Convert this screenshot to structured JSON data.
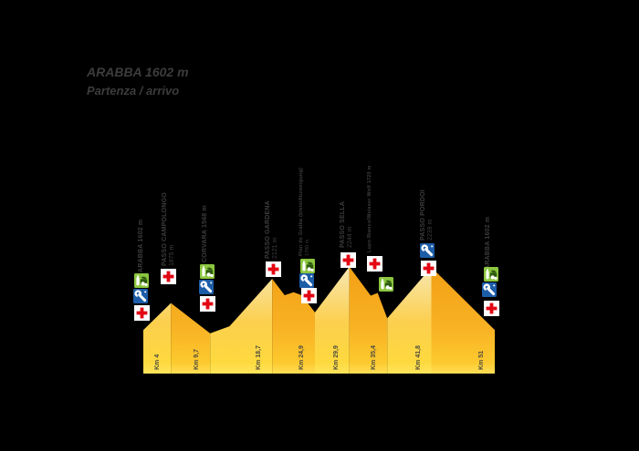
{
  "title": {
    "line1": "ARABBA 1602 m",
    "line2": "Partenza / arrivo"
  },
  "waypoints": [
    {
      "id": "arabba-start",
      "line1": "ARABBA 1602 m",
      "line2": "",
      "services": [
        "refreshment",
        "mechanic",
        "medical"
      ]
    },
    {
      "id": "passo-campolongo",
      "line1": "PASSO CAMPOLONGO",
      "line2": "1875 m",
      "services": [
        "medical"
      ]
    },
    {
      "id": "corvara",
      "line1": "CORVARA 1568 m",
      "line2": "",
      "services": [
        "refreshment",
        "mechanic",
        "medical"
      ]
    },
    {
      "id": "passo-gardena",
      "line1": "PASSO GARDENA",
      "line2": "2121 m",
      "services": [
        "medical"
      ]
    },
    {
      "id": "plan-de-gralba",
      "line1": "Plan de Gralba (bivio/Abzweigung)",
      "line2": "1780 m",
      "services": [
        "refreshment",
        "mechanic",
        "medical"
      ]
    },
    {
      "id": "passo-sella",
      "line1": "PASSO SELLA",
      "line2": "2244 m",
      "services": [
        "medical"
      ]
    },
    {
      "id": "lupo-bianco",
      "line1": "Lupo Bianco/Weisser Wolf 1720 m",
      "line2": "",
      "services": [
        "medical",
        "refreshment"
      ]
    },
    {
      "id": "passo-pordoi",
      "line1": "PASSO PORDOI",
      "line2": "2239 m",
      "services": [
        "mechanic",
        "medical"
      ]
    },
    {
      "id": "arabba-finish",
      "line1": "ARABBA 1602 m",
      "line2": "",
      "services": [
        "refreshment",
        "mechanic",
        "medical"
      ]
    }
  ],
  "chart_data": {
    "type": "area",
    "title": "ARABBA 1602 m — Partenza / arrivo",
    "xlabel": "Km",
    "ylabel": "m",
    "x_range_km": [
      0,
      51
    ],
    "points": [
      {
        "km": 0,
        "alt": 1602,
        "name": "Arabba"
      },
      {
        "km": 4,
        "alt": 1875,
        "name": "Passo Campolongo"
      },
      {
        "km": 9.7,
        "alt": 1568,
        "name": "Corvara"
      },
      {
        "km": 12.5,
        "alt": 1640,
        "minor": true
      },
      {
        "km": 18.7,
        "alt": 2121,
        "name": "Passo Gardena"
      },
      {
        "km": 20.5,
        "alt": 1955,
        "minor": true
      },
      {
        "km": 21.8,
        "alt": 1985,
        "minor": true
      },
      {
        "km": 23.0,
        "alt": 1955,
        "minor": true
      },
      {
        "km": 24.9,
        "alt": 1780,
        "name": "Plan de Gralba"
      },
      {
        "km": 29.9,
        "alt": 2244,
        "name": "Passo Sella"
      },
      {
        "km": 33.0,
        "alt": 1950,
        "minor": true
      },
      {
        "km": 34.0,
        "alt": 1978,
        "minor": true
      },
      {
        "km": 35.4,
        "alt": 1720,
        "name": "Lupo Bianco/Weisser Wolf"
      },
      {
        "km": 41.8,
        "alt": 2239,
        "name": "Passo Pordoi"
      },
      {
        "km": 51,
        "alt": 1602,
        "name": "Arabba"
      }
    ],
    "faces": [
      {
        "from": 0,
        "to": 1,
        "tone": "light"
      },
      {
        "from": 1,
        "to": 2,
        "tone": "dark"
      },
      {
        "from": 2,
        "to": 4,
        "tone": "light"
      },
      {
        "from": 4,
        "to": 8,
        "tone": "dark"
      },
      {
        "from": 8,
        "to": 9,
        "tone": "light"
      },
      {
        "from": 9,
        "to": 12,
        "tone": "dark"
      },
      {
        "from": 12,
        "to": 13,
        "tone": "light"
      },
      {
        "from": 13,
        "to": 14,
        "tone": "dark"
      }
    ],
    "km_ticks": [
      {
        "km": 4,
        "label": "Km 4"
      },
      {
        "km": 9.7,
        "label": "Km 9,7"
      },
      {
        "km": 18.7,
        "label": "Km 18,7"
      },
      {
        "km": 24.9,
        "label": "Km 24,9"
      },
      {
        "km": 29.9,
        "label": "Km 29,9"
      },
      {
        "km": 35.4,
        "label": "Km 35,4"
      },
      {
        "km": 41.8,
        "label": "Km 41,8"
      },
      {
        "km": 51,
        "label": "Km 51"
      }
    ]
  },
  "colors": {
    "background": "#000000",
    "label_text": "#3d3d3d",
    "km_text": "#4b4a3f",
    "face_light_top": "#f6ebc0",
    "face_light_mid": "#fccf4e",
    "face_light_bottom": "#ffe45c",
    "face_dark_top": "#f29d12",
    "face_dark_mid": "#f8b224",
    "face_dark_bottom": "#ffde55",
    "medical_red": "#e30613",
    "mechanic_blue": "#1d5da8",
    "refreshment_green": "#8cc63f"
  },
  "icons": {
    "refreshment": "refreshment-icon",
    "mechanic": "mechanic-icon",
    "medical": "medical-icon"
  }
}
